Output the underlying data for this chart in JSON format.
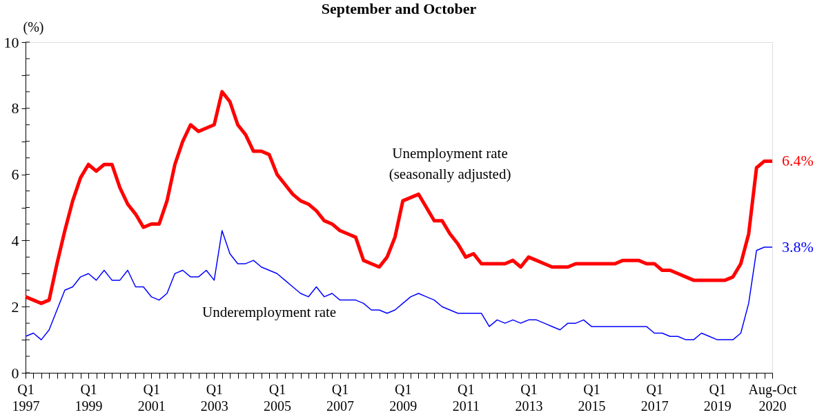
{
  "chart_data": {
    "type": "line",
    "title": "September and October",
    "ylabel": "(%)",
    "categories": [
      "Q1 1997",
      null,
      null,
      null,
      null,
      null,
      null,
      null,
      "Q1 1999",
      null,
      null,
      null,
      null,
      null,
      null,
      null,
      "Q1 2001",
      null,
      null,
      null,
      null,
      null,
      null,
      null,
      "Q1 2003",
      null,
      null,
      null,
      null,
      null,
      null,
      null,
      "Q1 2005",
      null,
      null,
      null,
      null,
      null,
      null,
      null,
      "Q1 2007",
      null,
      null,
      null,
      null,
      null,
      null,
      null,
      "Q1 2009",
      null,
      null,
      null,
      null,
      null,
      null,
      null,
      "Q1 2011",
      null,
      null,
      null,
      null,
      null,
      null,
      null,
      "Q1 2013",
      null,
      null,
      null,
      null,
      null,
      null,
      null,
      "Q1 2015",
      null,
      null,
      null,
      null,
      null,
      null,
      null,
      "Q1 2017",
      null,
      null,
      null,
      null,
      null,
      null,
      null,
      "Q1 2019",
      null,
      null,
      null,
      null,
      null,
      null,
      "Aug-Oct 2020"
    ],
    "series": [
      {
        "name": "Unemployment rate\n(seasonally adjusted)",
        "color": "#ff0000",
        "values": [
          2.3,
          2.2,
          2.1,
          2.2,
          3.3,
          4.3,
          5.2,
          5.9,
          6.3,
          6.1,
          6.3,
          6.3,
          5.6,
          5.1,
          4.8,
          4.4,
          4.5,
          4.5,
          5.2,
          6.3,
          7.0,
          7.5,
          7.3,
          7.4,
          7.5,
          8.5,
          8.2,
          7.5,
          7.2,
          6.7,
          6.7,
          6.6,
          6.0,
          5.7,
          5.4,
          5.2,
          5.1,
          4.9,
          4.6,
          4.5,
          4.3,
          4.2,
          4.1,
          3.4,
          3.3,
          3.2,
          3.5,
          4.1,
          5.2,
          5.3,
          5.4,
          5.0,
          4.6,
          4.6,
          4.2,
          3.9,
          3.5,
          3.6,
          3.3,
          3.3,
          3.3,
          3.3,
          3.4,
          3.2,
          3.5,
          3.4,
          3.3,
          3.2,
          3.2,
          3.2,
          3.3,
          3.3,
          3.3,
          3.3,
          3.3,
          3.3,
          3.4,
          3.4,
          3.4,
          3.3,
          3.3,
          3.1,
          3.1,
          3.0,
          2.9,
          2.8,
          2.8,
          2.8,
          2.8,
          2.8,
          2.9,
          3.3,
          4.2,
          6.2,
          6.4,
          6.4
        ],
        "value_labels": [
          null,
          null,
          null,
          null,
          null,
          null,
          null,
          null,
          null,
          null,
          null,
          null,
          null,
          null,
          null,
          null,
          null,
          null,
          null,
          null,
          null,
          null,
          null,
          null,
          null,
          null,
          null,
          null,
          null,
          null,
          null,
          null,
          null,
          null,
          null,
          null,
          null,
          null,
          null,
          null,
          null,
          null,
          null,
          null,
          null,
          null,
          null,
          null,
          null,
          null,
          null,
          null,
          null,
          null,
          null,
          null,
          null,
          null,
          null,
          null,
          null,
          null,
          null,
          null,
          null,
          null,
          null,
          null,
          null,
          null,
          null,
          null,
          null,
          null,
          null,
          null,
          null,
          null,
          null,
          null,
          null,
          null,
          null,
          null,
          null,
          null,
          null,
          null,
          null,
          null,
          null,
          null,
          null,
          null,
          null,
          "6.4%"
        ]
      },
      {
        "name": "Underemployment rate",
        "color": "#0000ff",
        "values": [
          1.1,
          1.2,
          1.0,
          1.3,
          1.9,
          2.5,
          2.6,
          2.9,
          3.0,
          2.8,
          3.1,
          2.8,
          2.8,
          3.1,
          2.6,
          2.6,
          2.3,
          2.2,
          2.4,
          3.0,
          3.1,
          2.9,
          2.9,
          3.1,
          2.8,
          4.3,
          3.6,
          3.3,
          3.3,
          3.4,
          3.2,
          3.1,
          3.0,
          2.8,
          2.6,
          2.4,
          2.3,
          2.6,
          2.3,
          2.4,
          2.2,
          2.2,
          2.2,
          2.1,
          1.9,
          1.9,
          1.8,
          1.9,
          2.1,
          2.3,
          2.4,
          2.3,
          2.2,
          2.0,
          1.9,
          1.8,
          1.8,
          1.8,
          1.8,
          1.4,
          1.6,
          1.5,
          1.6,
          1.5,
          1.6,
          1.6,
          1.5,
          1.4,
          1.3,
          1.5,
          1.5,
          1.6,
          1.4,
          1.4,
          1.4,
          1.4,
          1.4,
          1.4,
          1.4,
          1.4,
          1.2,
          1.2,
          1.1,
          1.1,
          1.0,
          1.0,
          1.2,
          1.1,
          1.0,
          1.0,
          1.0,
          1.2,
          2.1,
          3.7,
          3.8,
          3.8
        ],
        "value_labels": [
          null,
          null,
          null,
          null,
          null,
          null,
          null,
          null,
          null,
          null,
          null,
          null,
          null,
          null,
          null,
          null,
          null,
          null,
          null,
          null,
          null,
          null,
          null,
          null,
          null,
          null,
          null,
          null,
          null,
          null,
          null,
          null,
          null,
          null,
          null,
          null,
          null,
          null,
          null,
          null,
          null,
          null,
          null,
          null,
          null,
          null,
          null,
          null,
          null,
          null,
          null,
          null,
          null,
          null,
          null,
          null,
          null,
          null,
          null,
          null,
          null,
          null,
          null,
          null,
          null,
          null,
          null,
          null,
          null,
          null,
          null,
          null,
          null,
          null,
          null,
          null,
          null,
          null,
          null,
          null,
          null,
          null,
          null,
          null,
          null,
          null,
          null,
          null,
          null,
          null,
          null,
          null,
          null,
          null,
          null,
          "3.8%"
        ]
      }
    ],
    "ylim": [
      0,
      10
    ],
    "yticks": [
      0,
      {
        "value": 0.5,
        "label": null
      },
      2,
      {
        "value": 1.5,
        "label": null
      },
      {
        "value": 1,
        "label": null
      },
      {
        "value": 2.5,
        "label": null
      },
      {
        "value": 3,
        "label": null
      },
      {
        "value": 3.5,
        "label": null
      },
      4,
      {
        "value": 4.5,
        "label": null
      },
      {
        "value": 5,
        "label": null
      },
      {
        "value": 5.5,
        "label": null
      },
      6,
      {
        "value": 6.5,
        "label": null
      },
      {
        "value": 7,
        "label": null
      },
      {
        "value": 7.5,
        "label": null
      },
      8,
      {
        "value": 8.5,
        "label": null
      },
      {
        "value": 9,
        "label": null
      },
      {
        "value": 9.5,
        "label": null
      },
      10
    ],
    "grid": false,
    "marker": "none",
    "line_style": "solid"
  }
}
